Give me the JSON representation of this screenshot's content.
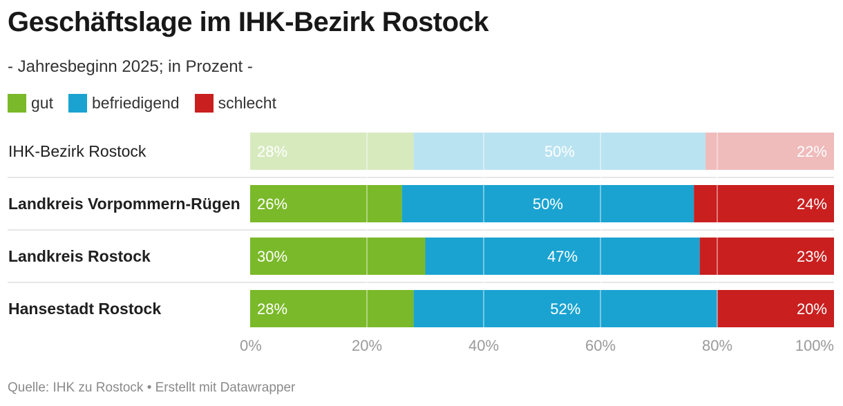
{
  "title": "Geschäftslage im IHK-Bezirk Rostock",
  "subtitle": "- Jahresbeginn 2025; in Prozent -",
  "footer": "Quelle: IHK zu Rostock • Erstellt mit Datawrapper",
  "colors": {
    "gut": "#7ab929",
    "befriedigend": "#1aa3d1",
    "schlecht": "#c91f1f"
  },
  "chart_data": {
    "type": "bar",
    "orientation": "horizontal-stacked",
    "xlim": [
      0,
      100
    ],
    "x_ticks": [
      "0%",
      "20%",
      "40%",
      "60%",
      "80%",
      "100%"
    ],
    "legend_position": "top-left",
    "grid": true,
    "categories": [
      "IHK-Bezirk Rostock",
      "Landkreis Vorpommern-Rügen",
      "Landkreis Rostock",
      "Hansestadt Rostock"
    ],
    "highlighted": [
      false,
      true,
      true,
      true
    ],
    "series": [
      {
        "name": "gut",
        "color": "#7ab929",
        "values": [
          28,
          26,
          30,
          28
        ],
        "labels": [
          "28%",
          "26%",
          "30%",
          "28%"
        ]
      },
      {
        "name": "befriedigend",
        "color": "#1aa3d1",
        "values": [
          50,
          50,
          47,
          52
        ],
        "labels": [
          "50%",
          "50%",
          "47%",
          "52%"
        ]
      },
      {
        "name": "schlecht",
        "color": "#c91f1f",
        "values": [
          22,
          24,
          23,
          20
        ],
        "labels": [
          "22%",
          "24%",
          "23%",
          "20%"
        ]
      }
    ]
  }
}
